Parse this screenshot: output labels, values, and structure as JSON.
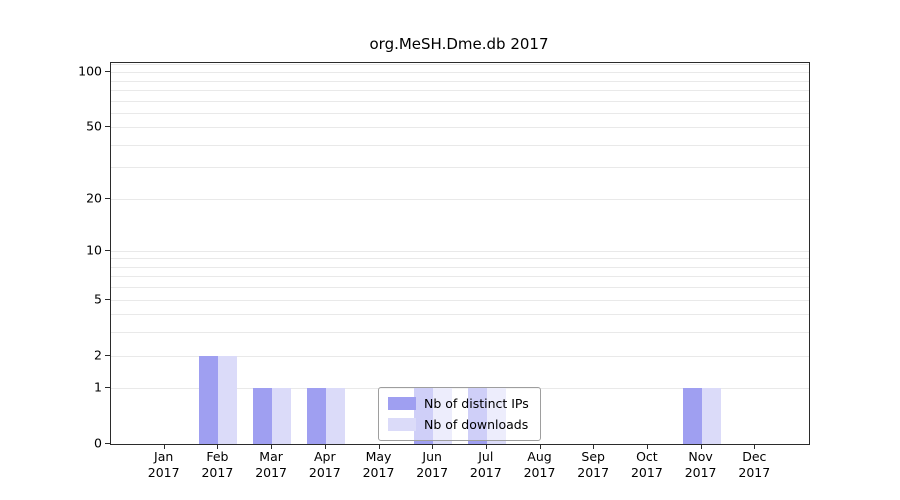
{
  "chart_data": {
    "type": "bar",
    "title": "org.MeSH.Dme.db 2017",
    "categories": [
      "Jan",
      "Feb",
      "Mar",
      "Apr",
      "May",
      "Jun",
      "Jul",
      "Aug",
      "Sep",
      "Oct",
      "Nov",
      "Dec"
    ],
    "year_label": "2017",
    "series": [
      {
        "name": "Nb of distinct IPs",
        "color": "#9f9ff1",
        "values": [
          0,
          2,
          1,
          1,
          0,
          1,
          1,
          0,
          0,
          0,
          1,
          0
        ]
      },
      {
        "name": "Nb of downloads",
        "color": "#dbdbf9",
        "values": [
          0,
          2,
          1,
          1,
          0,
          1,
          1,
          0,
          0,
          0,
          1,
          0
        ]
      }
    ],
    "yscale": "log1p",
    "ylim": [
      0,
      112
    ],
    "yticks": [
      0,
      1,
      2,
      5,
      10,
      20,
      50,
      100
    ],
    "minor_gridlines": [
      1,
      2,
      3,
      4,
      5,
      6,
      7,
      8,
      9,
      10,
      20,
      30,
      40,
      50,
      60,
      70,
      80,
      90,
      100,
      110
    ],
    "grid": "on",
    "legend_position": "lower center",
    "colors": {
      "axis": "#2b2b2b",
      "gridline": "#e9e9e9",
      "background": "#ffffff"
    }
  }
}
